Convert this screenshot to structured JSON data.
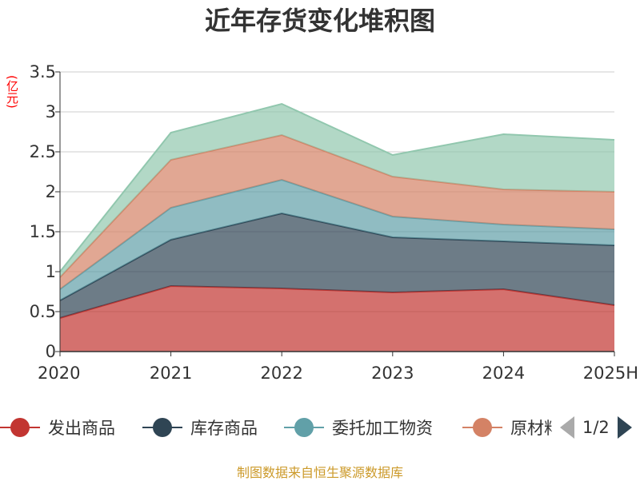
{
  "title": "近年存货变化堆积图",
  "unit": "(亿元)",
  "source": "制图数据来自恒生聚源数据库",
  "pager": {
    "text": "1/2"
  },
  "chart_data": {
    "type": "area",
    "stacked": true,
    "x": [
      "2020",
      "2021",
      "2022",
      "2023",
      "2024",
      "2025H"
    ],
    "ylim": [
      0,
      3.5
    ],
    "yticks": [
      "0",
      "0.5",
      "1",
      "1.5",
      "2",
      "2.5",
      "3",
      "3.5"
    ],
    "grid": true,
    "series": [
      {
        "name": "发出商品",
        "color": "#c23531",
        "values": [
          0.42,
          0.82,
          0.79,
          0.74,
          0.78,
          0.58
        ]
      },
      {
        "name": "库存商品",
        "color": "#2f4554",
        "values": [
          0.22,
          0.58,
          0.94,
          0.69,
          0.6,
          0.75
        ]
      },
      {
        "name": "委托加工物资",
        "color": "#61a0a8",
        "values": [
          0.14,
          0.4,
          0.42,
          0.26,
          0.21,
          0.2
        ]
      },
      {
        "name": "原材料",
        "color": "#d48265",
        "values": [
          0.15,
          0.6,
          0.56,
          0.5,
          0.44,
          0.47
        ]
      },
      {
        "name": "",
        "color": "#91c7ae",
        "values": [
          0.07,
          0.34,
          0.39,
          0.27,
          0.69,
          0.65
        ]
      }
    ],
    "legend": [
      "发出商品",
      "库存商品",
      "委托加工物资",
      "原材料"
    ]
  }
}
